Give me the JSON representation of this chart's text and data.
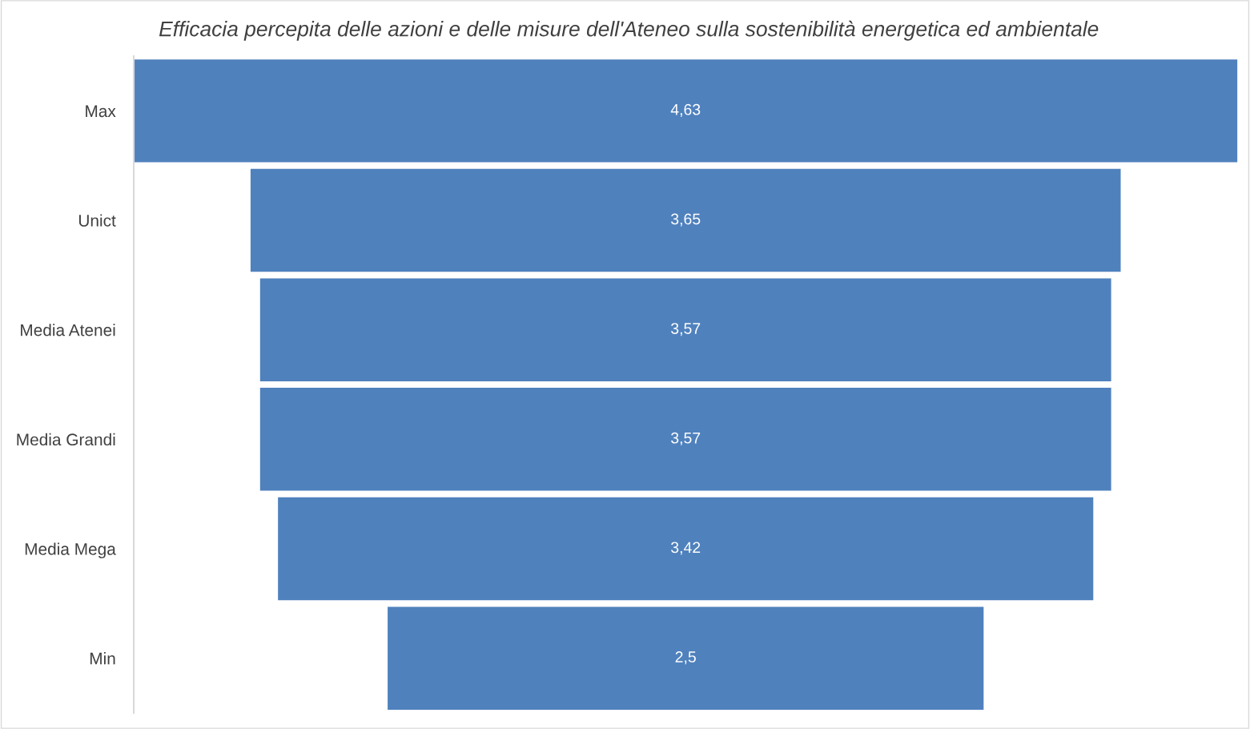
{
  "chart_data": {
    "type": "other",
    "title": "Efficacia percepita delle azioni e delle misure dell'Ateneo sulla sostenibilità energetica ed ambientale",
    "categories": [
      "Max",
      "Unict",
      "Media Atenei",
      "Media Grandi",
      "Media Mega",
      "Min"
    ],
    "values": [
      4.63,
      3.65,
      3.57,
      3.57,
      3.42,
      2.5
    ],
    "value_labels": [
      "4,63",
      "3,65",
      "3,57",
      "3,57",
      "3,42",
      "2,5"
    ],
    "color": "#4f81bd"
  }
}
